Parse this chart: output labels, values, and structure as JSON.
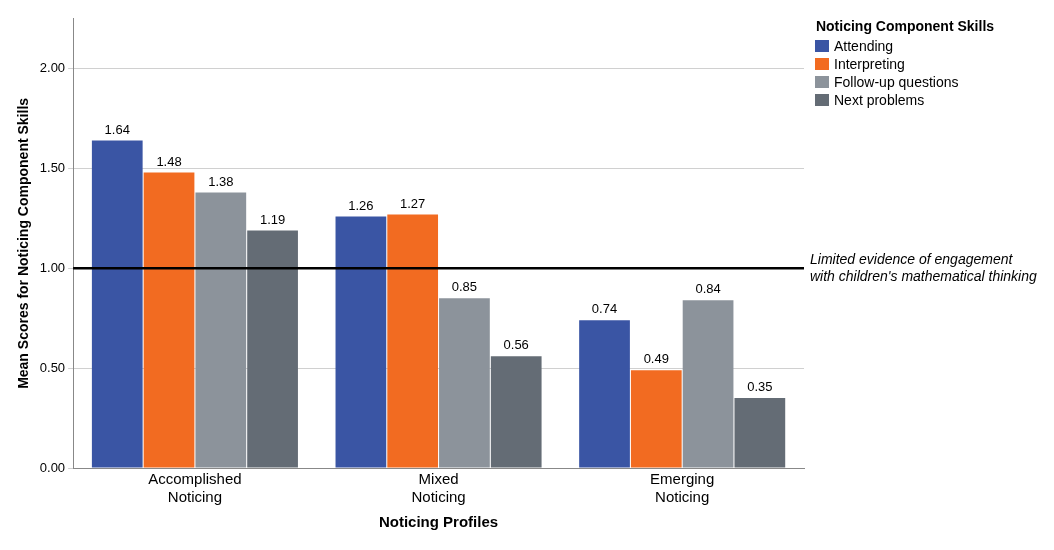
{
  "chart_data": {
    "type": "bar",
    "xlabel": "Noticing Profiles",
    "ylabel": "Mean Scores for Noticing Component Skills",
    "legend_title": "Noticing Component Skills",
    "categories": [
      "Accomplished Noticing",
      "Mixed Noticing",
      "Emerging Noticing"
    ],
    "series": [
      {
        "name": "Attending",
        "color": "#3a55a4",
        "values": [
          1.64,
          1.26,
          0.74
        ]
      },
      {
        "name": "Interpreting",
        "color": "#f26b21",
        "values": [
          1.48,
          1.27,
          0.49
        ]
      },
      {
        "name": "Follow-up questions",
        "color": "#8c939b",
        "values": [
          1.38,
          0.85,
          0.84
        ]
      },
      {
        "name": "Next problems",
        "color": "#646c75",
        "values": [
          1.19,
          0.56,
          0.35
        ]
      }
    ],
    "ylim": [
      0,
      2.25
    ],
    "yticks": [
      {
        "value": 0,
        "label": "0.00"
      },
      {
        "value": 0.5,
        "label": "0.50"
      },
      {
        "value": 1,
        "label": "1.00"
      },
      {
        "value": 1.5,
        "label": "1.50"
      },
      {
        "value": 2,
        "label": "2.00"
      }
    ],
    "grid": "y",
    "legend": "top right",
    "data_labels": true,
    "ref_lines": [
      {
        "axis": "y",
        "value": 1,
        "label": "Limited evidence of engagement with children's mathematical thinking",
        "color": "#000000"
      }
    ]
  }
}
